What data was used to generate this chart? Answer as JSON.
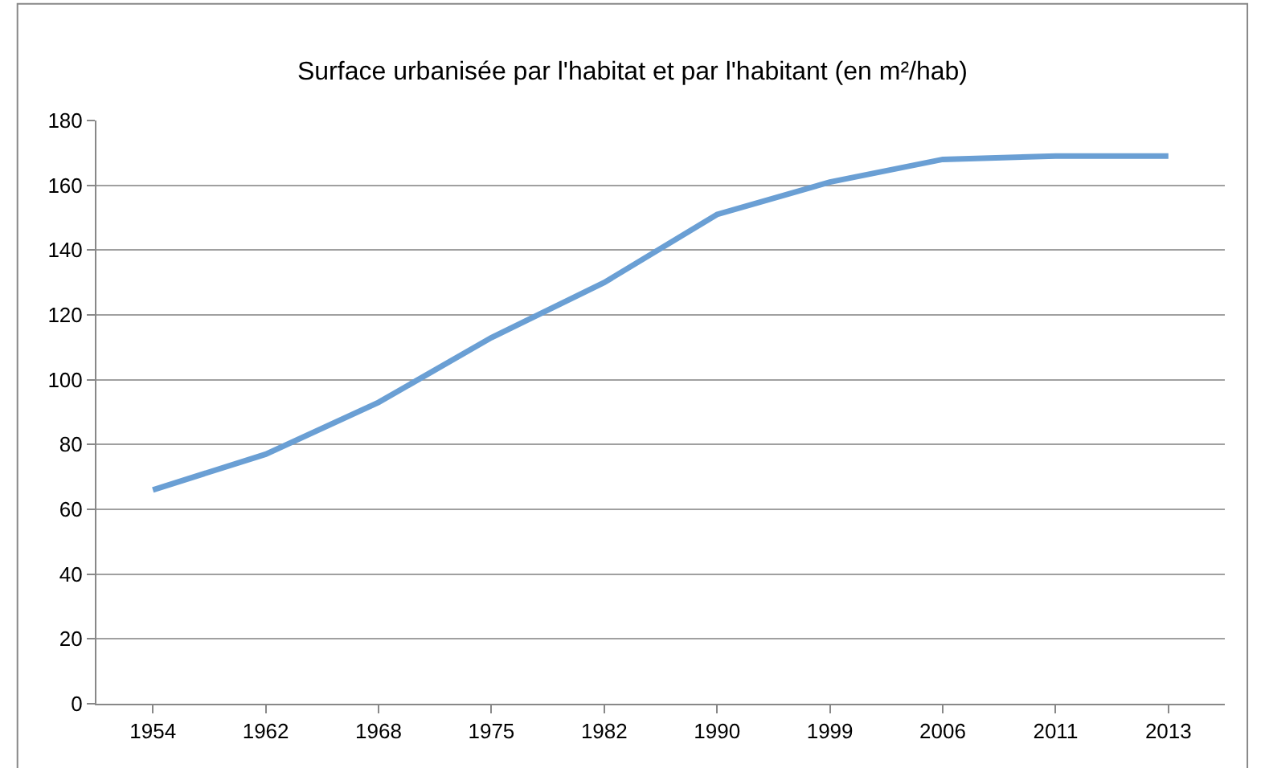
{
  "chart_data": {
    "type": "line",
    "title": "Surface urbanisée par l'habitat et par l'habitant (en m²/hab)",
    "categories": [
      "1954",
      "1962",
      "1968",
      "1975",
      "1982",
      "1990",
      "1999",
      "2006",
      "2011",
      "2013"
    ],
    "series": [
      {
        "color": "#6a9fd4",
        "values": [
          66,
          77,
          93,
          113,
          130,
          151,
          161,
          168,
          169,
          169
        ]
      }
    ],
    "ylim": [
      0,
      180
    ],
    "yticks": [
      0,
      20,
      40,
      60,
      80,
      100,
      120,
      140,
      160,
      180
    ],
    "grid": "y",
    "marker": "none",
    "line_style": "solid"
  }
}
